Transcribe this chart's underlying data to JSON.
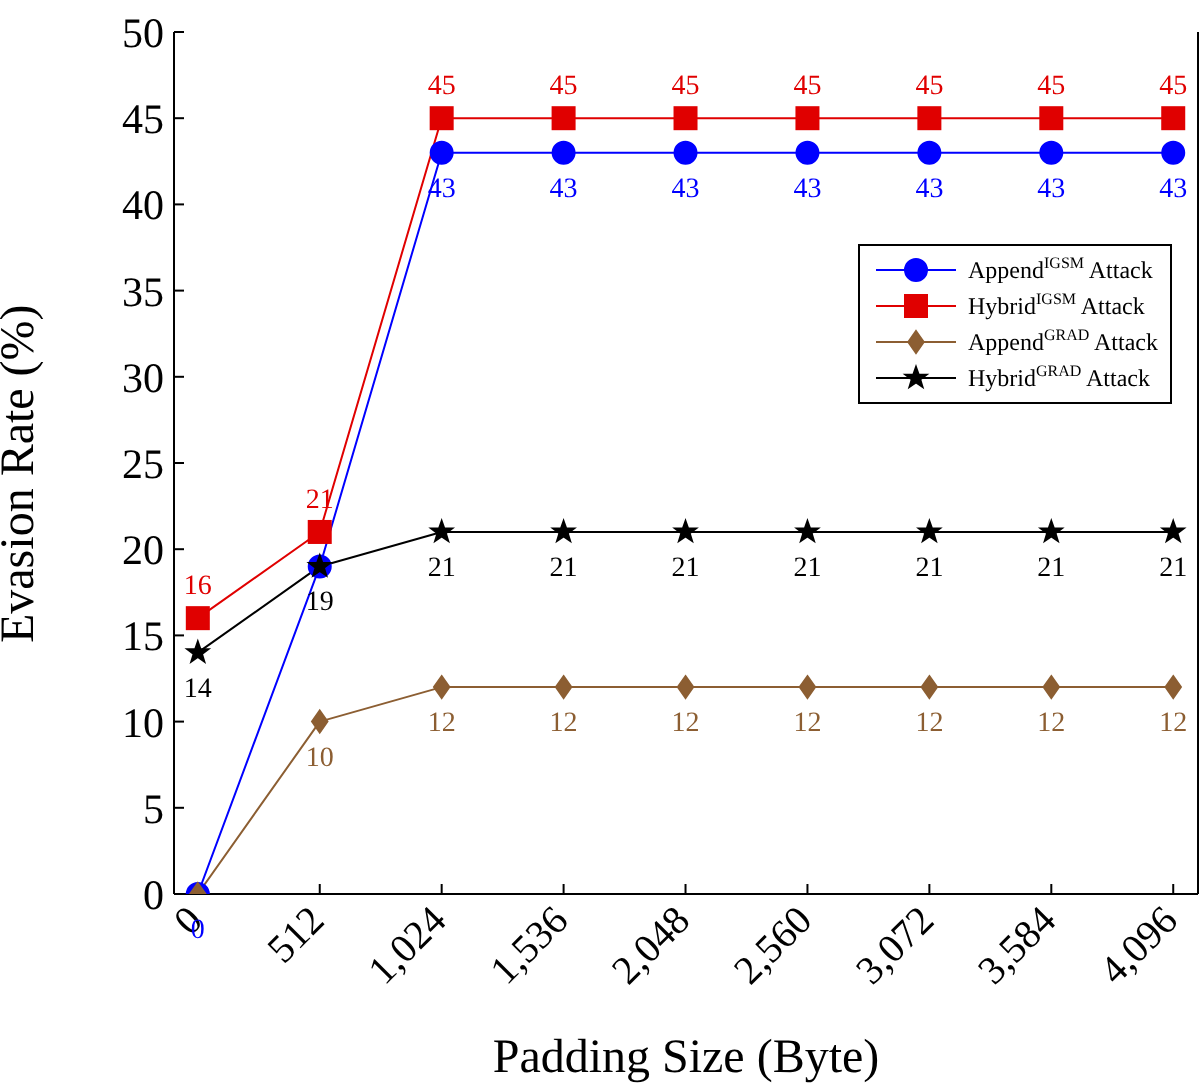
{
  "chart_data": {
    "type": "line",
    "xlabel": "Padding Size (Byte)",
    "ylabel": "Evasion Rate (%)",
    "x": [
      0,
      512,
      1024,
      1536,
      2048,
      2560,
      3072,
      3584,
      4096
    ],
    "xlim": [
      -100,
      4200
    ],
    "xticks": [
      0,
      512,
      {
        "value": 1024,
        "label": "1,024"
      },
      {
        "value": 1536,
        "label": "1,536"
      },
      {
        "value": 2048,
        "label": "2,048"
      },
      {
        "value": 2560,
        "label": "2,560"
      },
      {
        "value": 3072,
        "label": "3,072"
      },
      {
        "value": 3584,
        "label": "3,584"
      },
      {
        "value": 4096,
        "label": "4,096"
      }
    ],
    "ylim": [
      0,
      50
    ],
    "yticks": [
      0,
      5,
      10,
      15,
      20,
      25,
      30,
      35,
      40,
      45,
      50
    ],
    "grid": false,
    "legend": "top right",
    "line_style": "solid",
    "series": [
      {
        "name": "Append$^{IGSM}$ Attack",
        "color": "#0000ff",
        "marker": "circle",
        "values": [
          0,
          19,
          43,
          43,
          43,
          43,
          43,
          43,
          43
        ],
        "value_labels": [
          "0",
          null,
          "43",
          "43",
          "43",
          "43",
          "43",
          "43",
          "43"
        ]
      },
      {
        "name": "Hybrid$^{IGSM}$ Attack",
        "color": "#e00000",
        "marker": "square",
        "values": [
          16,
          21,
          45,
          45,
          45,
          45,
          45,
          45,
          45
        ],
        "value_labels": [
          "16",
          "21",
          "45",
          "45",
          "45",
          "45",
          "45",
          "45",
          "45"
        ]
      },
      {
        "name": "Append$^{GRAD}$ Attack",
        "color": "#8c5e32",
        "marker": "diamond",
        "values": [
          0,
          10,
          12,
          12,
          12,
          12,
          12,
          12,
          12
        ],
        "value_labels": [
          null,
          "10",
          "12",
          "12",
          "12",
          "12",
          "12",
          "12",
          "12"
        ]
      },
      {
        "name": "Hybrid$^{GRAD}$ Attack",
        "color": "#000000",
        "marker": "star",
        "values": [
          14,
          19,
          21,
          21,
          21,
          21,
          21,
          21,
          21
        ],
        "value_labels": [
          "14",
          "19",
          "21",
          "21",
          "21",
          "21",
          "21",
          "21",
          "21"
        ]
      }
    ]
  }
}
